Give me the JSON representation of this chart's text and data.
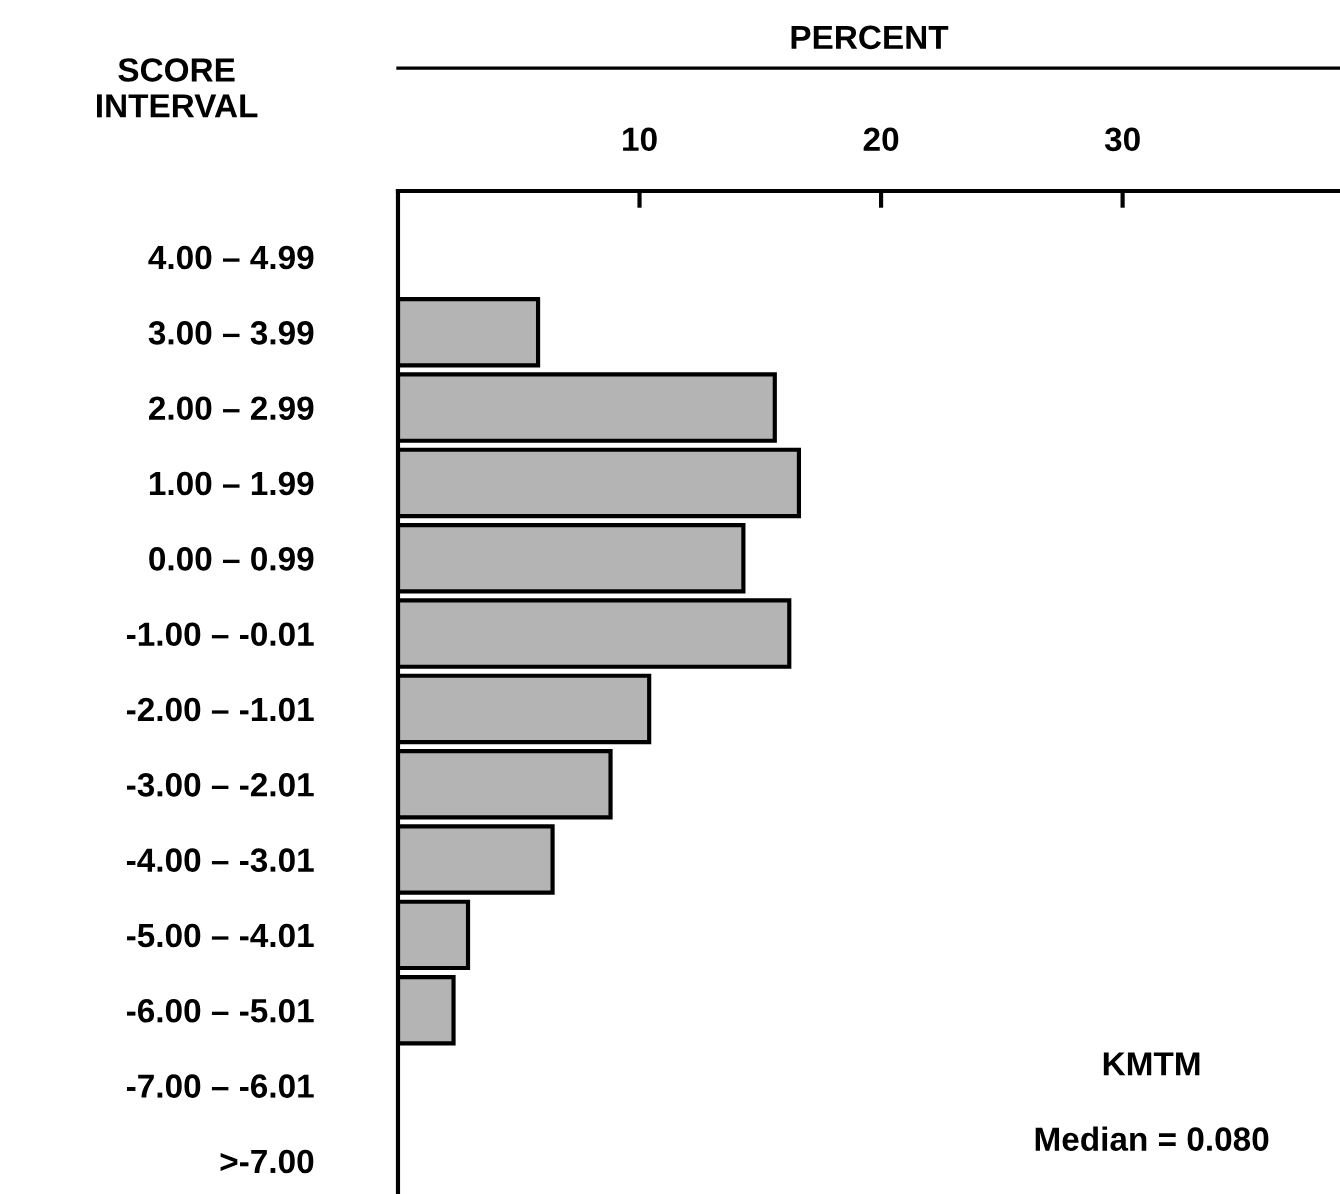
{
  "chart_data": {
    "type": "bar",
    "orientation": "horizontal",
    "xlabel": "PERCENT",
    "ylabel": "SCORE\nINTERVAL",
    "categories": [
      "4.00 – 4.99",
      "3.00 – 3.99",
      "2.00 – 2.99",
      "1.00 – 1.99",
      "0.00 – 0.99",
      "-1.00 – -0.01",
      "-2.00 – -1.01",
      "-3.00 – -2.01",
      "-4.00 – -3.01",
      "-5.00 – -4.01",
      "-6.00 – -5.01",
      "-7.00 – -6.01",
      ">-7.00"
    ],
    "values": [
      0,
      5.8,
      15.6,
      16.6,
      14.3,
      16.2,
      10.4,
      8.8,
      6.4,
      2.9,
      2.3,
      0,
      0
    ],
    "color": "#b4b4b4",
    "xlim": [
      0,
      39
    ],
    "xticks": [
      10,
      20,
      30
    ],
    "grid": false,
    "legend": false,
    "annotations": [
      "KMTM",
      "Median = 0.080"
    ]
  }
}
